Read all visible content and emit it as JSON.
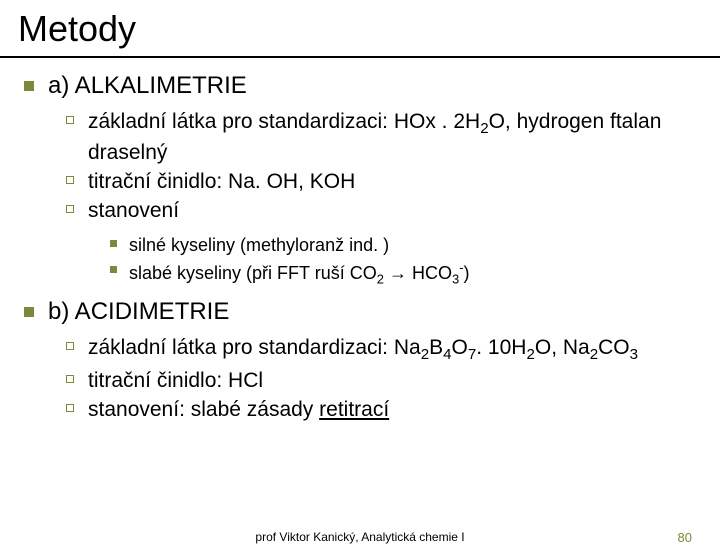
{
  "title": "Metody",
  "sectionA": {
    "heading": "a) ALKALIMETRIE",
    "item1_pre": "základní látka pro standardizaci: HOx . 2H",
    "item1_sub1": "2",
    "item1_post": "O, hydrogen ftalan draselný",
    "item2": "titrační činidlo: Na. OH, KOH",
    "item3": "stanovení",
    "sub1": "silné kyseliny (methyloranž ind. )",
    "sub2_pre": "slabé kyseliny (při FFT ruší CO",
    "sub2_s1": "2",
    "sub2_mid": " → HCO",
    "sub2_s2": "3",
    "sub2_sup": "-",
    "sub2_post": ")"
  },
  "sectionB": {
    "heading": "b) ACIDIMETRIE",
    "item1_pre": "základní látka pro standardizaci: Na",
    "item1_s1": "2",
    "item1_m1": "B",
    "item1_s2": "4",
    "item1_m2": "O",
    "item1_s3": "7",
    "item1_m3": ". 10H",
    "item1_s4": "2",
    "item1_m4": "O, Na",
    "item1_s5": "2",
    "item1_m5": "CO",
    "item1_s6": "3",
    "item2": "titrační činidlo: HCl",
    "item3_pre": "stanovení: slabé zásady ",
    "item3_u": "retitrací"
  },
  "footer": {
    "center": "prof Viktor Kanický, Analytická chemie I",
    "page": "80"
  },
  "colors": {
    "accent": "#7a8a3a",
    "text": "#000000",
    "background": "#ffffff"
  }
}
